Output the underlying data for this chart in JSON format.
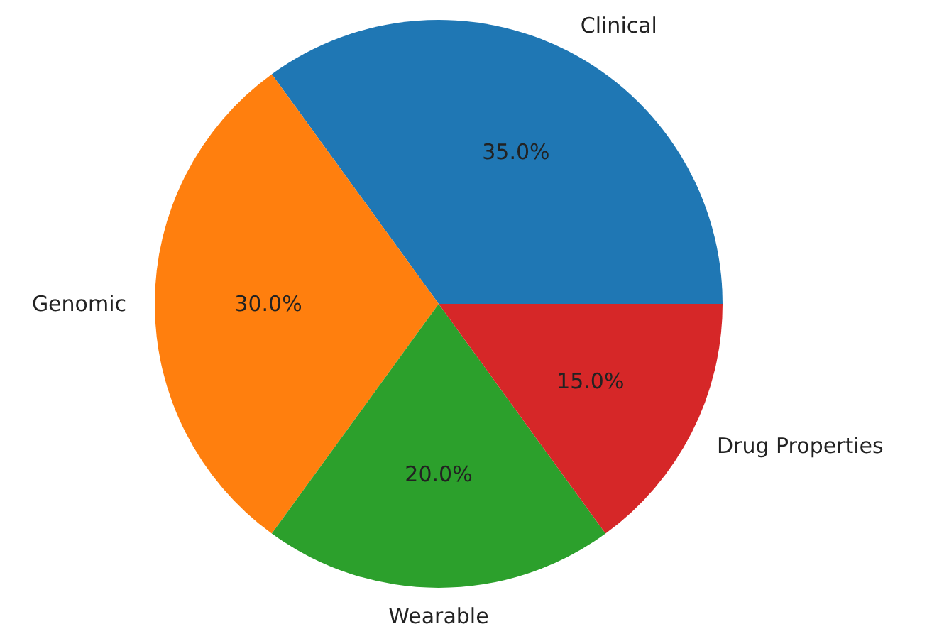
{
  "chart_data": {
    "type": "pie",
    "categories": [
      "Clinical",
      "Genomic",
      "Wearable",
      "Drug Properties"
    ],
    "values": [
      35,
      30,
      20,
      15
    ],
    "colors": [
      "#1f77b4",
      "#ff7f0e",
      "#2ca02c",
      "#d62728"
    ],
    "value_labels": [
      "35.0%",
      "30.0%",
      "20.0%",
      "15.0%"
    ]
  }
}
